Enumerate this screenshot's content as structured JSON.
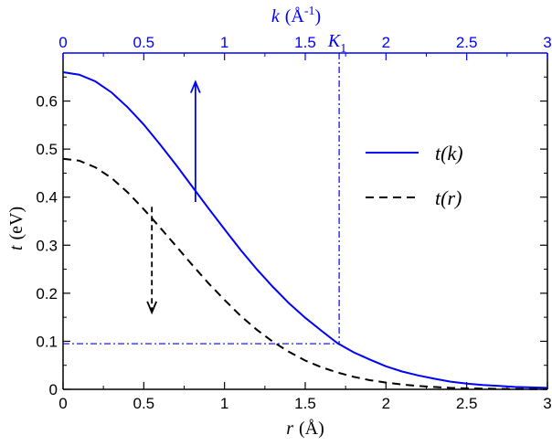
{
  "chart_data": {
    "type": "line",
    "colors": {
      "blue": "#0000ff",
      "black": "#000000"
    },
    "bottom_axis": {
      "label_var": "r",
      "label_unit": "(Å)",
      "range": [
        0,
        3
      ],
      "ticks": [
        "0",
        "0.5",
        "1",
        "1.5",
        "2",
        "2.5",
        "3"
      ]
    },
    "top_axis": {
      "label_var": "k",
      "label_unit": "(Å",
      "label_unit_sup": "-1",
      "label_unit_close": ")",
      "range": [
        0,
        3
      ],
      "ticks": [
        "0",
        "0.5",
        "1",
        "1.5",
        "2",
        "2.5",
        "3"
      ]
    },
    "left_axis": {
      "label_var": "t",
      "label_unit": "(eV)",
      "range": [
        0,
        0.7
      ],
      "ticks": [
        "0",
        "0.1",
        "0.2",
        "0.3",
        "0.4",
        "0.5",
        "0.6"
      ]
    },
    "grid": false,
    "legend_position": "right",
    "series": [
      {
        "name": "t(k)",
        "axis": "top",
        "line": "solid",
        "x": [
          0,
          0.1,
          0.2,
          0.3,
          0.4,
          0.5,
          0.6,
          0.7,
          0.8,
          0.9,
          1.0,
          1.1,
          1.2,
          1.3,
          1.4,
          1.5,
          1.6,
          1.7,
          1.8,
          1.9,
          2.0,
          2.1,
          2.2,
          2.3,
          2.4,
          2.5,
          2.6,
          2.7,
          2.8,
          2.9,
          3.0
        ],
        "y": [
          0.66,
          0.655,
          0.641,
          0.618,
          0.587,
          0.551,
          0.51,
          0.467,
          0.422,
          0.377,
          0.333,
          0.29,
          0.25,
          0.213,
          0.179,
          0.149,
          0.122,
          0.096,
          0.077,
          0.062,
          0.048,
          0.037,
          0.029,
          0.022,
          0.016,
          0.012,
          0.009,
          0.007,
          0.005,
          0.004,
          0.003
        ]
      },
      {
        "name": "t(r)",
        "axis": "bottom",
        "line": "dashed",
        "x": [
          0,
          0.1,
          0.2,
          0.3,
          0.4,
          0.5,
          0.6,
          0.7,
          0.8,
          0.9,
          1.0,
          1.1,
          1.2,
          1.3,
          1.4,
          1.5,
          1.6,
          1.7,
          1.8,
          1.9,
          2.0,
          2.1,
          2.2,
          2.3,
          2.4,
          2.5,
          2.6,
          2.7,
          2.8,
          2.9,
          3.0
        ],
        "y": [
          0.48,
          0.476,
          0.462,
          0.44,
          0.41,
          0.375,
          0.337,
          0.298,
          0.259,
          0.221,
          0.186,
          0.153,
          0.124,
          0.099,
          0.078,
          0.06,
          0.046,
          0.035,
          0.026,
          0.019,
          0.014,
          0.01,
          0.007,
          0.005,
          0.003,
          0.002,
          0.0015,
          0.001,
          0.0008,
          0.0005,
          0.0003
        ]
      }
    ],
    "annotations": {
      "K1": {
        "label": "K",
        "label_sub": "1",
        "k": 1.71,
        "t": 0.095
      },
      "arrow_up": {
        "x": 0.82,
        "y_from": 0.39,
        "y_to": 0.64,
        "axis": "top"
      },
      "arrow_down": {
        "x": 0.55,
        "y_from": 0.38,
        "y_to": 0.16,
        "axis": "bottom"
      }
    }
  }
}
